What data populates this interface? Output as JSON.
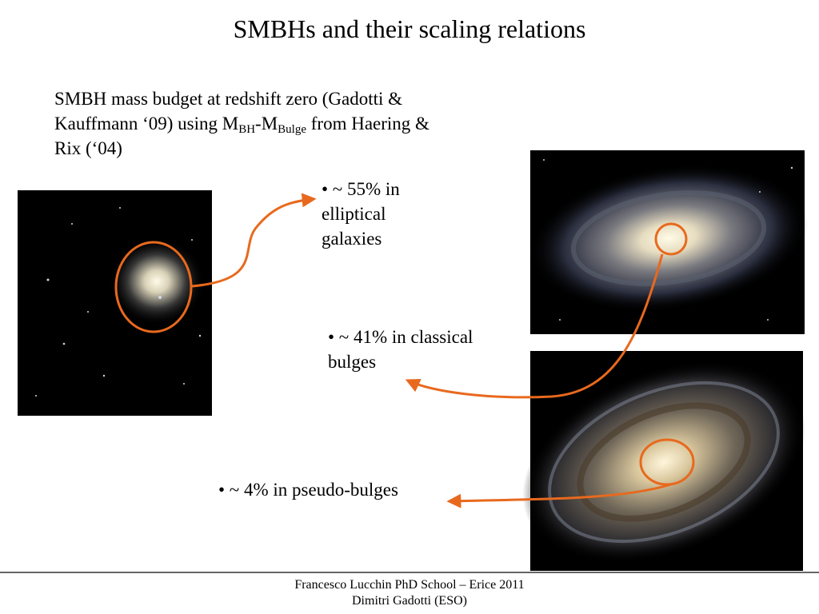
{
  "header": {
    "title": "SMBHs and their scaling relations"
  },
  "intro": {
    "part1": "SMBH mass budget at redshift zero (Gadotti & Kauffmann ‘09) using M",
    "sub1": "BH",
    "part2": "-M",
    "sub2": "Bulge",
    "part3": " from Haering & Rix (‘04)"
  },
  "bullets": [
    "• ~ 55% in elliptical galaxies",
    "• ~ 41% in classical bulges",
    "• ~ 4% in pseudo-bulges"
  ],
  "footer": {
    "line1": "Francesco Lucchin PhD School – Erice 2011",
    "line2": "Dimitri Gadotti (ESO)"
  }
}
